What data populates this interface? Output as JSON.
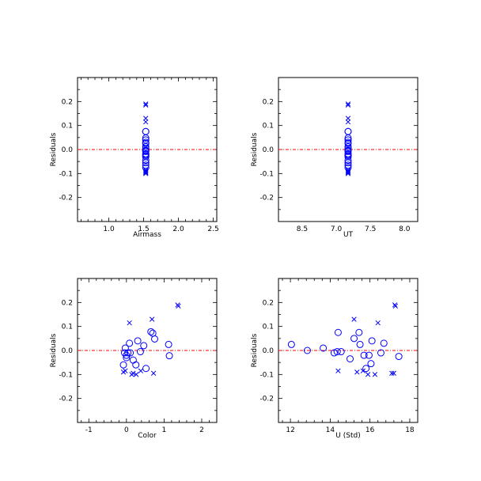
{
  "figure": {
    "background": "#ffffff"
  },
  "styles": {
    "marker_color": "#0000ff",
    "zero_line_color": "#ff0000",
    "axis_color": "#000000"
  },
  "chart_data": [
    {
      "type": "scatter",
      "id": "airmass",
      "xlabel": "Airmass",
      "ylabel": "Residuals",
      "xlim": [
        0.55,
        2.55
      ],
      "ylim": [
        -0.3,
        0.3
      ],
      "xticks": [
        1.0,
        1.5,
        2.0,
        2.5
      ],
      "xticklabels": [
        "1.0",
        "1.5",
        "2.0",
        "2.5"
      ],
      "yticks": [
        -0.2,
        -0.1,
        0.0,
        0.1,
        0.2
      ],
      "yticklabels": [
        "-0.2",
        "-0.1",
        "0.0",
        "0.1",
        "0.2"
      ],
      "zero_line": 0.0,
      "grid": false,
      "series": [
        {
          "marker": "circle",
          "x": [
            1.53,
            1.53,
            1.53,
            1.53,
            1.53,
            1.53,
            1.53,
            1.53,
            1.53,
            1.53,
            1.53,
            1.53,
            1.53,
            1.53,
            1.53,
            1.53,
            1.53,
            1.53,
            1.53
          ],
          "y": [
            0.075,
            0.075,
            0.048,
            0.04,
            0.03,
            0.025,
            0.012,
            0.005,
            -0.003,
            -0.005,
            -0.008,
            -0.018,
            -0.02,
            -0.025,
            -0.03,
            -0.045,
            -0.055,
            -0.065,
            -0.075
          ]
        },
        {
          "marker": "x",
          "x": [
            1.53,
            1.53,
            1.53,
            1.53,
            1.53,
            1.53,
            1.53,
            1.53,
            1.53,
            1.53,
            1.53
          ],
          "y": [
            0.19,
            0.185,
            0.13,
            0.115,
            -0.085,
            -0.09,
            -0.095,
            -0.1,
            -0.1,
            -0.095,
            -0.09
          ]
        }
      ]
    },
    {
      "type": "scatter",
      "id": "ut",
      "xlabel": "UT",
      "ylabel": "Residuals",
      "xlim": [
        8.15,
        8.1
      ],
      "ylim": [
        -0.3,
        0.3
      ],
      "xticks": [
        8.5,
        7.0,
        7.5,
        8.0
      ],
      "xticklabels": [
        "8.5",
        "7.0",
        "7.5",
        "8.0"
      ],
      "yticks": [
        -0.2,
        -0.1,
        0.0,
        0.1,
        0.2
      ],
      "yticklabels": [
        "-0.2",
        "-0.1",
        "0.0",
        "0.1",
        "0.2"
      ],
      "zero_line": 0.0,
      "grid": false,
      "series": [
        {
          "marker": "circle",
          "x": [
            7.13,
            7.13,
            7.13,
            7.13,
            7.13,
            7.13,
            7.13,
            7.13,
            7.13,
            7.13,
            7.13,
            7.13,
            7.13,
            7.13,
            7.13,
            7.13,
            7.13,
            7.13,
            7.13
          ],
          "y": [
            0.075,
            0.075,
            0.048,
            0.04,
            0.03,
            0.025,
            0.012,
            0.005,
            -0.003,
            -0.005,
            -0.008,
            -0.018,
            -0.02,
            -0.025,
            -0.03,
            -0.045,
            -0.055,
            -0.065,
            -0.075
          ]
        },
        {
          "marker": "x",
          "x": [
            7.13,
            7.13,
            7.13,
            7.13,
            7.13,
            7.13,
            7.13,
            7.13,
            7.13,
            7.13,
            7.13
          ],
          "y": [
            0.19,
            0.185,
            0.13,
            0.115,
            -0.085,
            -0.09,
            -0.095,
            -0.1,
            -0.1,
            -0.095,
            -0.09
          ]
        }
      ]
    },
    {
      "type": "scatter",
      "id": "color",
      "xlabel": "Color",
      "ylabel": "Residuals",
      "xlim": [
        -1.3,
        2.4
      ],
      "ylim": [
        -0.3,
        0.3
      ],
      "xticks": [
        -1,
        0,
        1,
        2
      ],
      "xticklabels": [
        "-1",
        "0",
        "1",
        "2"
      ],
      "yticks": [
        -0.2,
        -0.1,
        0.0,
        0.1,
        0.2
      ],
      "yticklabels": [
        "-0.2",
        "-0.1",
        "0.0",
        "0.1",
        "0.2"
      ],
      "zero_line": 0.0,
      "grid": false,
      "series": [
        {
          "marker": "circle",
          "x": [
            -0.03,
            -0.05,
            0.0,
            0.04,
            0.0,
            0.08,
            0.1,
            0.18,
            0.25,
            0.3,
            0.37,
            0.46,
            0.52,
            0.65,
            0.7,
            0.75,
            1.12,
            1.14,
            -0.08
          ],
          "y": [
            0.01,
            -0.01,
            -0.02,
            -0.01,
            -0.03,
            0.03,
            -0.01,
            -0.04,
            -0.06,
            0.04,
            -0.005,
            0.02,
            -0.075,
            0.078,
            0.072,
            0.048,
            0.025,
            -0.022,
            -0.06
          ]
        },
        {
          "marker": "x",
          "x": [
            1.36,
            1.38,
            0.68,
            0.08,
            0.38,
            -0.08,
            -0.03,
            0.14,
            0.26,
            0.18,
            0.72
          ],
          "y": [
            0.19,
            0.185,
            0.13,
            0.115,
            -0.085,
            -0.09,
            -0.085,
            -0.1,
            -0.1,
            -0.095,
            -0.095
          ]
        }
      ]
    },
    {
      "type": "scatter",
      "id": "u_std",
      "xlabel": "U (Std)",
      "ylabel": "Residuals",
      "xlim": [
        11.4,
        18.4
      ],
      "ylim": [
        -0.3,
        0.3
      ],
      "xticks": [
        12,
        14,
        16,
        18
      ],
      "xticklabels": [
        "12",
        "14",
        "16",
        "18"
      ],
      "yticks": [
        -0.2,
        -0.1,
        0.0,
        0.1,
        0.2
      ],
      "yticklabels": [
        "-0.2",
        "-0.1",
        "0.0",
        "0.1",
        "0.2"
      ],
      "zero_line": 0.0,
      "grid": false,
      "series": [
        {
          "marker": "circle",
          "x": [
            12.05,
            12.85,
            13.65,
            14.2,
            14.4,
            14.55,
            15.0,
            15.2,
            15.45,
            15.5,
            15.7,
            15.8,
            15.95,
            16.05,
            16.1,
            16.55,
            16.7,
            17.45,
            14.35
          ],
          "y": [
            0.025,
            0.0,
            0.01,
            -0.01,
            0.075,
            -0.005,
            -0.035,
            0.05,
            0.075,
            0.025,
            -0.02,
            -0.075,
            -0.02,
            -0.055,
            0.04,
            -0.01,
            0.03,
            -0.025,
            -0.005
          ]
        },
        {
          "marker": "x",
          "x": [
            17.25,
            17.28,
            15.2,
            16.4,
            14.4,
            15.35,
            15.65,
            15.9,
            16.25,
            17.1,
            17.2
          ],
          "y": [
            0.19,
            0.185,
            0.13,
            0.115,
            -0.085,
            -0.09,
            -0.085,
            -0.1,
            -0.1,
            -0.095,
            -0.095
          ]
        }
      ]
    }
  ]
}
